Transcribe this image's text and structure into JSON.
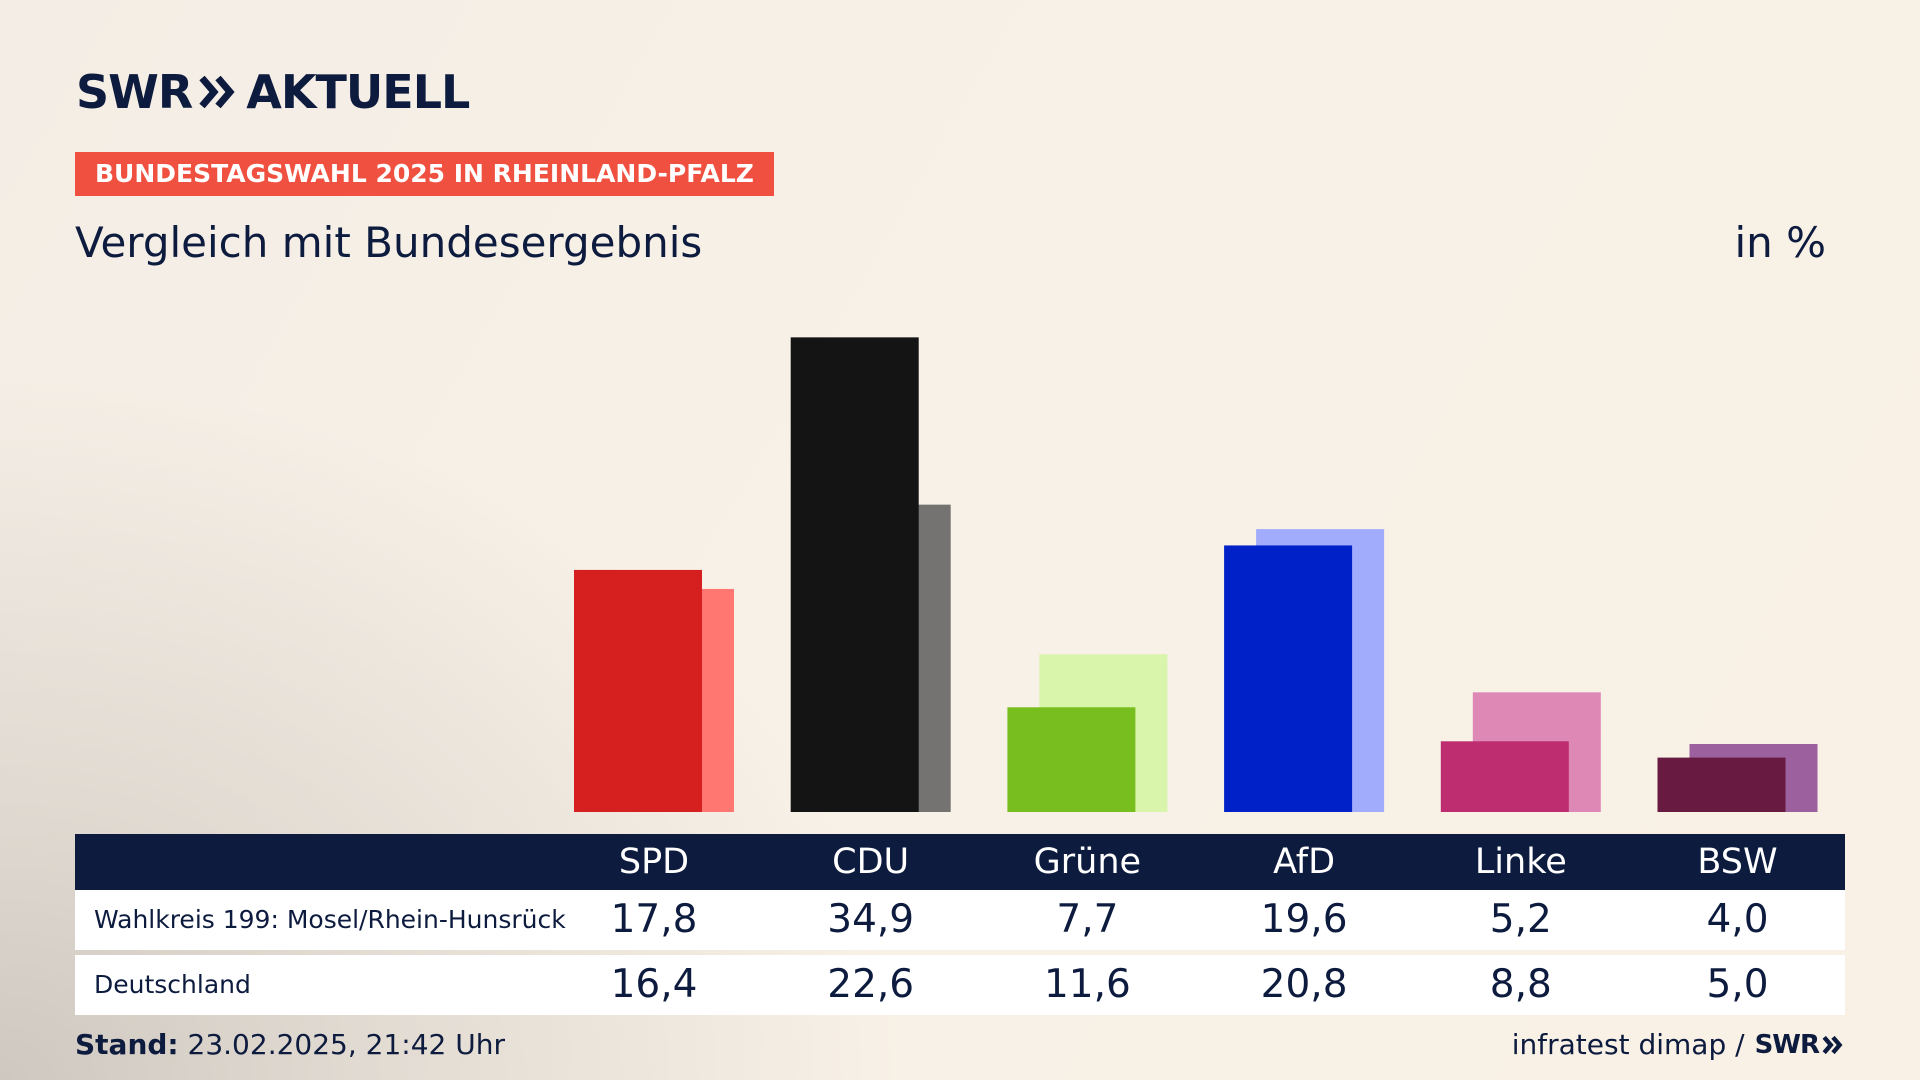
{
  "brand": {
    "left": "SWR",
    "right": "AKTUELL",
    "mini": "SWR"
  },
  "tag": "BUNDESTAGSWAHL 2025 IN RHEINLAND-PFALZ",
  "subtitle": "Vergleich mit Bundesergebnis",
  "unit": "in %",
  "table": {
    "row_labels": [
      "Wahlkreis 199: Mosel/Rhein-Hunsrück",
      "Deutschland"
    ]
  },
  "footer": {
    "stand_label": "Stand:",
    "stand_value": "23.02.2025, 21:42 Uhr",
    "source": "infratest dimap /"
  },
  "chart_data": {
    "type": "bar",
    "title": "Vergleich mit Bundesergebnis",
    "ylabel": "in %",
    "categories": [
      "SPD",
      "CDU",
      "Grüne",
      "AfD",
      "Linke",
      "BSW"
    ],
    "series": [
      {
        "name": "Wahlkreis 199: Mosel/Rhein-Hunsrück",
        "values": [
          17.8,
          34.9,
          7.7,
          19.6,
          5.2,
          4.0
        ],
        "value_labels": [
          "17,8",
          "34,9",
          "7,7",
          "19,6",
          "5,2",
          "4,0"
        ],
        "colors": [
          "#d61f1f",
          "#141414",
          "#78be1e",
          "#0021c7",
          "#bd2d70",
          "#681a40"
        ]
      },
      {
        "name": "Deutschland",
        "values": [
          16.4,
          22.6,
          11.6,
          20.8,
          8.8,
          5.0
        ],
        "value_labels": [
          "16,4",
          "22,6",
          "11,6",
          "20,8",
          "8,8",
          "5,0"
        ],
        "colors": [
          "#ff7770",
          "#757371",
          "#d8f5ab",
          "#a1acfd",
          "#de88b6",
          "#9b609d"
        ]
      }
    ],
    "ylim": [
      0,
      35
    ],
    "grid": false,
    "legend": "table-below"
  }
}
